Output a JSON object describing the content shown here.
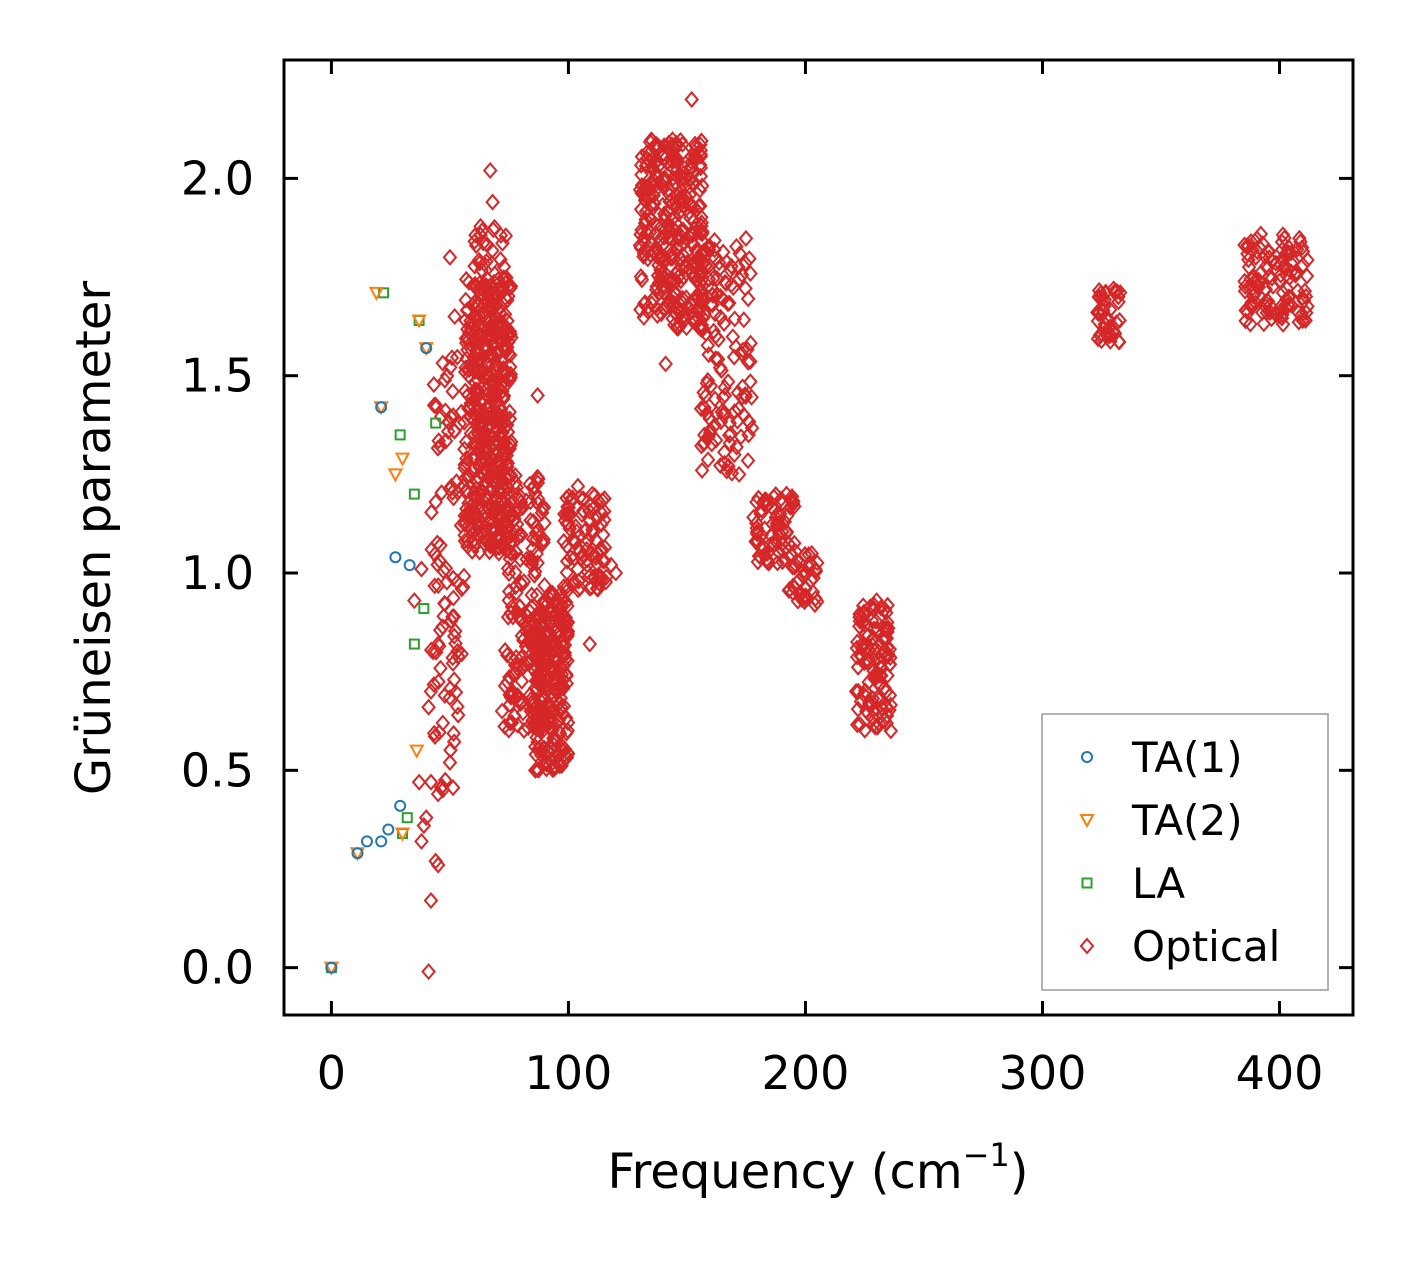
{
  "chart_data": {
    "type": "scatter",
    "title": "",
    "xlabel": "Frequency (cm",
    "xlabel_sup": "−1",
    "xlabel_end": ")",
    "ylabel": "Grüneisen parameter",
    "xlim": [
      -20,
      431
    ],
    "ylim": [
      -0.12,
      2.3
    ],
    "xticks": [
      0,
      100,
      200,
      300,
      400
    ],
    "xtick_labels": [
      "0",
      "100",
      "200",
      "300",
      "400"
    ],
    "yticks": [
      0.0,
      0.5,
      1.0,
      1.5,
      2.0
    ],
    "ytick_labels": [
      "0.0",
      "0.5",
      "1.0",
      "1.5",
      "2.0"
    ],
    "grid": false,
    "legend_position": "bottom-right",
    "series": [
      {
        "name": "TA(1)",
        "color": "#1f77b4",
        "marker": "circle",
        "points": [
          [
            0,
            0.0
          ],
          [
            11,
            0.29
          ],
          [
            15,
            0.32
          ],
          [
            21,
            0.32
          ],
          [
            21,
            1.42
          ],
          [
            24,
            0.35
          ],
          [
            27,
            1.04
          ],
          [
            29,
            0.41
          ],
          [
            33,
            1.02
          ],
          [
            40,
            1.57
          ]
        ]
      },
      {
        "name": "TA(2)",
        "color": "#ff7f0e",
        "marker": "triangle-down",
        "points": [
          [
            0,
            0.0
          ],
          [
            11,
            0.29
          ],
          [
            19,
            1.71
          ],
          [
            21,
            1.42
          ],
          [
            27,
            1.25
          ],
          [
            30,
            1.29
          ],
          [
            30,
            0.34
          ],
          [
            36,
            0.55
          ],
          [
            37,
            1.64
          ],
          [
            40,
            1.57
          ]
        ]
      },
      {
        "name": "LA",
        "color": "#2ca02c",
        "marker": "square",
        "points": [
          [
            0,
            0.0
          ],
          [
            22,
            1.71
          ],
          [
            29,
            1.35
          ],
          [
            30,
            0.34
          ],
          [
            32,
            0.38
          ],
          [
            35,
            1.2
          ],
          [
            35,
            0.82
          ],
          [
            37,
            1.64
          ],
          [
            39,
            0.91
          ],
          [
            44,
            1.38
          ]
        ]
      },
      {
        "name": "Optical",
        "color": "#d62728",
        "marker": "diamond",
        "points": [
          [
            41,
            -0.01
          ],
          [
            42,
            0.17
          ],
          [
            44,
            0.27
          ],
          [
            45,
            0.26
          ],
          [
            38,
            0.32
          ],
          [
            39,
            0.36
          ],
          [
            40,
            0.38
          ],
          [
            42,
            0.47
          ],
          [
            37,
            0.47
          ],
          [
            45,
            0.44
          ],
          [
            47,
            0.45
          ],
          [
            38,
            1.01
          ],
          [
            35,
            0.93
          ],
          [
            43,
            0.8
          ],
          [
            45,
            0.82
          ],
          [
            41,
            0.66
          ],
          [
            42,
            0.7
          ],
          [
            47,
            0.62
          ],
          [
            50,
            0.52
          ],
          [
            44,
            1.18
          ],
          [
            46,
            1.07
          ],
          [
            52,
            1.65
          ],
          [
            50,
            1.8
          ],
          [
            67,
            2.02
          ],
          [
            68,
            1.94
          ],
          [
            72,
            0.65
          ],
          [
            87,
            1.45
          ],
          [
            109,
            0.82
          ],
          [
            141,
            1.53
          ],
          [
            120,
            1.0
          ],
          [
            118,
            1.02
          ],
          [
            116,
            0.99
          ],
          [
            55,
            0.96
          ],
          [
            58,
            1.12
          ],
          [
            62,
            1.35
          ],
          [
            64,
            1.55
          ],
          [
            66,
            1.42
          ],
          [
            68,
            1.7
          ],
          [
            70,
            1.28
          ],
          [
            72,
            1.48
          ],
          [
            74,
            1.22
          ],
          [
            76,
            1.05
          ],
          [
            78,
            0.95
          ],
          [
            80,
            0.88
          ],
          [
            84,
            0.82
          ],
          [
            88,
            0.72
          ],
          [
            92,
            0.62
          ],
          [
            94,
            0.55
          ],
          [
            96,
            0.78
          ],
          [
            98,
            1.08
          ],
          [
            100,
            1.15
          ],
          [
            104,
            1.22
          ],
          [
            108,
            1.02
          ],
          [
            112,
            1.05
          ],
          [
            86,
            0.5
          ],
          [
            90,
            0.52
          ],
          [
            60,
            1.2
          ],
          [
            63,
            1.3
          ],
          [
            66,
            1.6
          ],
          [
            69,
            1.65
          ],
          [
            71,
            1.4
          ],
          [
            73,
            1.1
          ],
          [
            132,
            1.85
          ],
          [
            134,
            1.95
          ],
          [
            136,
            2.05
          ],
          [
            138,
            1.78
          ],
          [
            140,
            1.72
          ],
          [
            142,
            1.88
          ],
          [
            144,
            1.68
          ],
          [
            146,
            1.62
          ],
          [
            148,
            1.85
          ],
          [
            150,
            1.95
          ],
          [
            152,
            2.2
          ],
          [
            154,
            1.92
          ],
          [
            156,
            1.88
          ],
          [
            158,
            1.78
          ],
          [
            160,
            1.68
          ],
          [
            162,
            1.6
          ],
          [
            164,
            1.52
          ],
          [
            166,
            1.45
          ],
          [
            168,
            1.38
          ],
          [
            170,
            1.3
          ],
          [
            172,
            1.25
          ],
          [
            174,
            1.4
          ],
          [
            176,
            1.35
          ],
          [
            180,
            1.08
          ],
          [
            184,
            1.05
          ],
          [
            188,
            1.12
          ],
          [
            192,
            1.2
          ],
          [
            196,
            1.02
          ],
          [
            200,
            0.96
          ],
          [
            204,
            0.92
          ],
          [
            224,
            0.82
          ],
          [
            226,
            0.78
          ],
          [
            228,
            0.88
          ],
          [
            230,
            0.93
          ],
          [
            232,
            0.74
          ],
          [
            234,
            0.66
          ],
          [
            236,
            0.6
          ],
          [
            324,
            1.66
          ],
          [
            326,
            1.62
          ],
          [
            328,
            1.6
          ],
          [
            330,
            1.72
          ],
          [
            332,
            1.7
          ],
          [
            388,
            1.84
          ],
          [
            390,
            1.8
          ],
          [
            392,
            1.76
          ],
          [
            394,
            1.72
          ],
          [
            396,
            1.66
          ],
          [
            400,
            1.74
          ],
          [
            404,
            1.7
          ],
          [
            408,
            1.66
          ],
          [
            411,
            1.64
          ]
        ],
        "clusters": [
          {
            "x": [
              42,
              56
            ],
            "y": [
              0.45,
              1.55
            ],
            "n": 90
          },
          {
            "x": [
              56,
              76
            ],
            "y": [
              1.05,
              1.75
            ],
            "n": 380
          },
          {
            "x": [
              60,
              74
            ],
            "y": [
              1.1,
              1.9
            ],
            "n": 160
          },
          {
            "x": [
              73,
              90
            ],
            "y": [
              0.6,
              1.25
            ],
            "n": 180
          },
          {
            "x": [
              86,
              100
            ],
            "y": [
              0.5,
              0.95
            ],
            "n": 260
          },
          {
            "x": [
              98,
              116
            ],
            "y": [
              0.95,
              1.2
            ],
            "n": 90
          },
          {
            "x": [
              130,
              157
            ],
            "y": [
              1.62,
              2.1
            ],
            "n": 330
          },
          {
            "x": [
              155,
              178
            ],
            "y": [
              1.25,
              1.85
            ],
            "n": 130
          },
          {
            "x": [
              178,
              196
            ],
            "y": [
              1.02,
              1.2
            ],
            "n": 70
          },
          {
            "x": [
              193,
              205
            ],
            "y": [
              0.92,
              1.05
            ],
            "n": 35
          },
          {
            "x": [
              221,
              236
            ],
            "y": [
              0.6,
              0.92
            ],
            "n": 110
          },
          {
            "x": [
              323,
              333
            ],
            "y": [
              1.58,
              1.72
            ],
            "n": 40
          },
          {
            "x": [
              385,
              412
            ],
            "y": [
              1.63,
              1.86
            ],
            "n": 110
          }
        ]
      }
    ]
  }
}
